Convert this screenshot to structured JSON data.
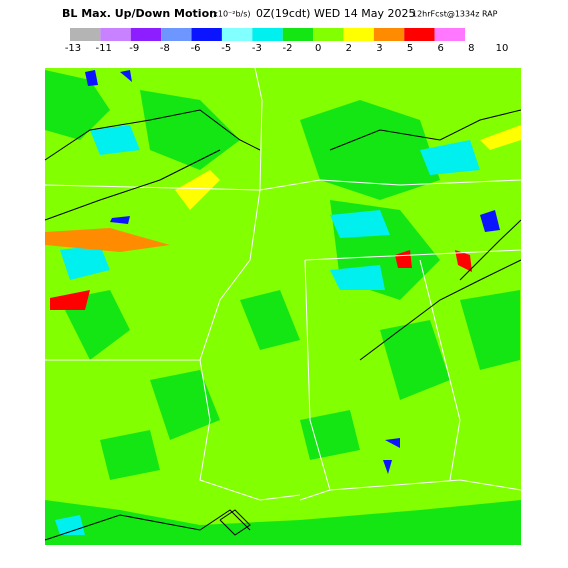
{
  "header": {
    "title": "BL Max. Up/Down Motion",
    "units": "(x10⁻²b/s)",
    "valid": "0Z(19cdt) WED 14 May 2025",
    "forecast": "12hrFcst@1334z RAP"
  },
  "colorbar": {
    "colors": [
      "#b4b4b4",
      "#c882ff",
      "#8c1eff",
      "#6e96ff",
      "#0a14ff",
      "#82ffff",
      "#00f0f0",
      "#14e614",
      "#82ff00",
      "#ffff00",
      "#ff8c00",
      "#ff0000",
      "#ff78ff"
    ],
    "labels": [
      -13,
      -11,
      -9,
      -8,
      -6,
      -5,
      -3,
      -2,
      0,
      2,
      3,
      5,
      6,
      8,
      10
    ]
  }
}
